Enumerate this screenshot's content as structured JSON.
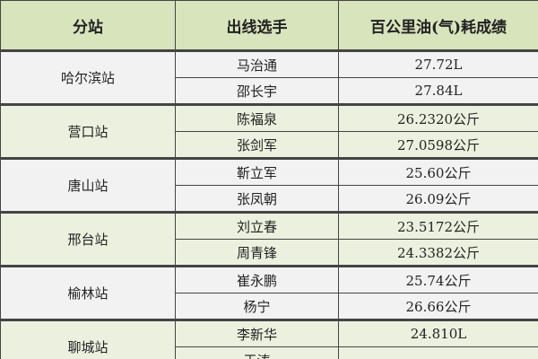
{
  "headers": [
    "分站",
    "出线选手",
    "百公里油(气)耗成绩"
  ],
  "groups": [
    {
      "station": "哈尔滨站",
      "rows": [
        {
          "driver": "马治通",
          "result": "27.72L"
        },
        {
          "driver": "邵长宇",
          "result": "27.84L"
        }
      ]
    },
    {
      "station": "营口站",
      "rows": [
        {
          "driver": "陈福泉",
          "result": "26.2320公斤"
        },
        {
          "driver": "张剑军",
          "result": "27.0598公斤"
        }
      ]
    },
    {
      "station": "唐山站",
      "rows": [
        {
          "driver": "靳立军",
          "result": "25.60公斤"
        },
        {
          "driver": "张凤朝",
          "result": "26.09公斤"
        }
      ]
    },
    {
      "station": "邢台站",
      "rows": [
        {
          "driver": "刘立春",
          "result": "23.5172公斤"
        },
        {
          "driver": "周青锋",
          "result": "24.3382公斤"
        }
      ]
    },
    {
      "station": "榆林站",
      "rows": [
        {
          "driver": "崔永鹏",
          "result": "25.74公斤"
        },
        {
          "driver": "杨宁",
          "result": "26.66公斤"
        }
      ]
    },
    {
      "station": "聊城站",
      "rows": [
        {
          "driver": "李新华",
          "result": "24.810L"
        },
        {
          "driver": "王涛",
          "result": ""
        }
      ]
    }
  ]
}
